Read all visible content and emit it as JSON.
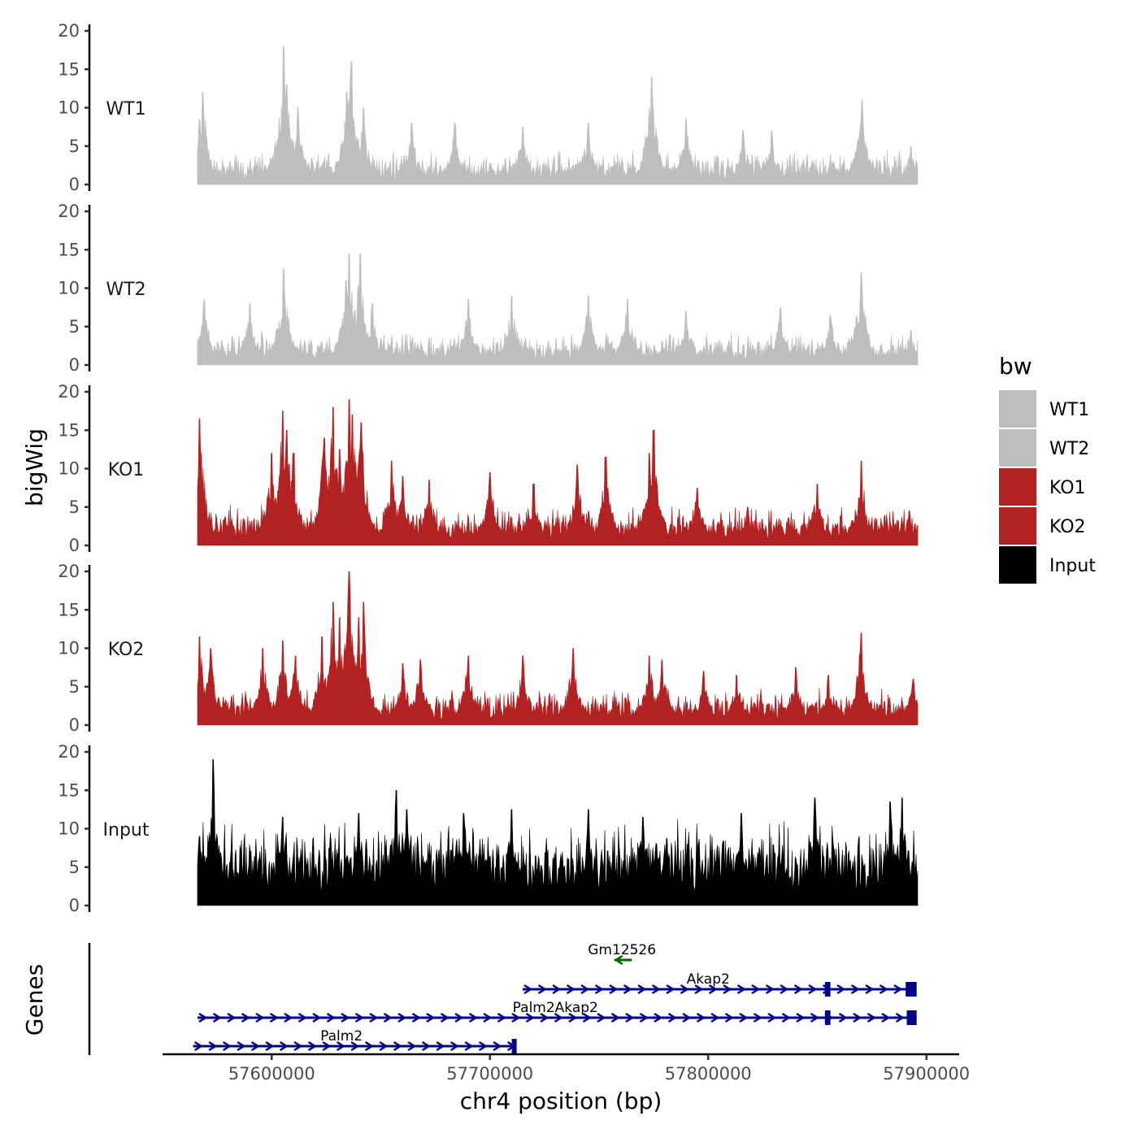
{
  "chart_data": {
    "type": "area",
    "title": "",
    "xlabel": "chr4 position (bp)",
    "ylabel_tracks": "bigWig",
    "ylabel_genes": "Genes",
    "xlim": [
      57550000,
      57915000
    ],
    "data_xlim": [
      57566000,
      57896000
    ],
    "x_ticks": [
      57600000,
      57700000,
      57800000,
      57900000
    ],
    "x_tick_labels": [
      "57600000",
      "57700000",
      "57800000",
      "57900000"
    ],
    "y_ticks": [
      0,
      5,
      10,
      15,
      20
    ],
    "y_tick_labels": [
      "0",
      "5",
      "10",
      "15",
      "20"
    ],
    "ylim": [
      0,
      20
    ],
    "series": [
      {
        "name": "WT1",
        "color": "#bebebe",
        "baseline": 1.8,
        "noise": 2.2,
        "seed": 11,
        "peaks": [
          [
            57567000,
            8.5
          ],
          [
            57568500,
            12
          ],
          [
            57605500,
            18
          ],
          [
            57607000,
            13
          ],
          [
            57612000,
            10
          ],
          [
            57634500,
            12
          ],
          [
            57636500,
            16
          ],
          [
            57642000,
            10
          ],
          [
            57664000,
            8
          ],
          [
            57684000,
            8
          ],
          [
            57715000,
            7.5
          ],
          [
            57745000,
            8
          ],
          [
            57774000,
            14
          ],
          [
            57790000,
            8.5
          ],
          [
            57816000,
            7
          ],
          [
            57829000,
            7
          ],
          [
            57870500,
            11
          ],
          [
            57893000,
            5
          ]
        ]
      },
      {
        "name": "WT2",
        "color": "#bebebe",
        "baseline": 1.8,
        "noise": 2.2,
        "seed": 23,
        "peaks": [
          [
            57569000,
            8.5
          ],
          [
            57590000,
            8
          ],
          [
            57605500,
            12.5
          ],
          [
            57634000,
            11
          ],
          [
            57635500,
            14.5
          ],
          [
            57640500,
            14.5
          ],
          [
            57646000,
            8
          ],
          [
            57690000,
            8.5
          ],
          [
            57710000,
            9
          ],
          [
            57745000,
            9
          ],
          [
            57763000,
            8.5
          ],
          [
            57790000,
            7
          ],
          [
            57833000,
            7.5
          ],
          [
            57856000,
            6.5
          ],
          [
            57870000,
            12
          ],
          [
            57893000,
            4.5
          ]
        ]
      },
      {
        "name": "KO1",
        "color": "#b22222",
        "baseline": 2.2,
        "noise": 2.6,
        "seed": 37,
        "peaks": [
          [
            57567000,
            16.5
          ],
          [
            57600000,
            12
          ],
          [
            57605000,
            17.5
          ],
          [
            57607000,
            15
          ],
          [
            57610000,
            12
          ],
          [
            57624000,
            14
          ],
          [
            57628000,
            18
          ],
          [
            57631000,
            12.5
          ],
          [
            57635500,
            19
          ],
          [
            57637000,
            17
          ],
          [
            57641000,
            16
          ],
          [
            57655000,
            11
          ],
          [
            57660000,
            9
          ],
          [
            57672000,
            8.5
          ],
          [
            57700000,
            9.5
          ],
          [
            57720000,
            8
          ],
          [
            57740000,
            10.5
          ],
          [
            57753000,
            11.5
          ],
          [
            57773000,
            12
          ],
          [
            57775000,
            15
          ],
          [
            57795000,
            7.5
          ],
          [
            57818000,
            5
          ],
          [
            57850000,
            8
          ],
          [
            57870000,
            11
          ],
          [
            57892000,
            4.5
          ]
        ]
      },
      {
        "name": "KO2",
        "color": "#b22222",
        "baseline": 2.0,
        "noise": 2.4,
        "seed": 53,
        "peaks": [
          [
            57567000,
            11.5
          ],
          [
            57572000,
            10
          ],
          [
            57596000,
            10
          ],
          [
            57605000,
            11
          ],
          [
            57611000,
            9
          ],
          [
            57623000,
            11.5
          ],
          [
            57628000,
            16
          ],
          [
            57631000,
            14
          ],
          [
            57635500,
            20
          ],
          [
            57640000,
            14
          ],
          [
            57642000,
            16
          ],
          [
            57660000,
            8
          ],
          [
            57668000,
            8.5
          ],
          [
            57690000,
            9
          ],
          [
            57715000,
            9
          ],
          [
            57738000,
            10
          ],
          [
            57773000,
            9
          ],
          [
            57779000,
            8.5
          ],
          [
            57798000,
            7
          ],
          [
            57813000,
            6.5
          ],
          [
            57840000,
            7.5
          ],
          [
            57855000,
            6.5
          ],
          [
            57870000,
            12
          ],
          [
            57894000,
            6
          ]
        ]
      },
      {
        "name": "Input",
        "color": "#000000",
        "baseline": 5.0,
        "noise": 5.0,
        "seed": 71,
        "peaks": [
          [
            57567000,
            9
          ],
          [
            57573000,
            19
          ],
          [
            57605000,
            11.5
          ],
          [
            57640000,
            12
          ],
          [
            57657000,
            15
          ],
          [
            57662000,
            12.5
          ],
          [
            57688000,
            12
          ],
          [
            57710000,
            12.5
          ],
          [
            57745000,
            12.5
          ],
          [
            57770000,
            11.5
          ],
          [
            57815000,
            12
          ],
          [
            57849000,
            14
          ],
          [
            57883500,
            13.5
          ],
          [
            57889000,
            14
          ]
        ]
      }
    ],
    "genes": [
      {
        "name": "Gm12526",
        "color": "#006400",
        "start": 57757000,
        "end": 57765000,
        "strand": "-",
        "row": 0,
        "exons": [],
        "label_x": 57760500
      },
      {
        "name": "Akap2",
        "color": "#00008b",
        "start": 57715000,
        "end": 57895500,
        "strand": "+",
        "row": 1,
        "exons": [
          [
            57853500,
            57856000
          ],
          [
            57890500,
            57895500
          ]
        ],
        "label_x": 57800000
      },
      {
        "name": "Palm2Akap2",
        "color": "#00008b",
        "start": 57566000,
        "end": 57895500,
        "strand": "+",
        "row": 2,
        "exons": [
          [
            57853500,
            57856000
          ],
          [
            57891000,
            57895500
          ]
        ],
        "label_x": 57730000
      },
      {
        "name": "Palm2",
        "color": "#00008b",
        "start": 57564000,
        "end": 57712000,
        "strand": "+",
        "row": 3,
        "exons": [
          [
            57710000,
            57712000
          ]
        ],
        "label_x": 57632000
      }
    ],
    "legend": {
      "title": "bw",
      "position": "right",
      "entries": [
        {
          "label": "WT1",
          "color": "#bebebe"
        },
        {
          "label": "WT2",
          "color": "#bebebe"
        },
        {
          "label": "KO1",
          "color": "#b22222"
        },
        {
          "label": "KO2",
          "color": "#b22222"
        },
        {
          "label": "Input",
          "color": "#000000"
        }
      ]
    }
  }
}
